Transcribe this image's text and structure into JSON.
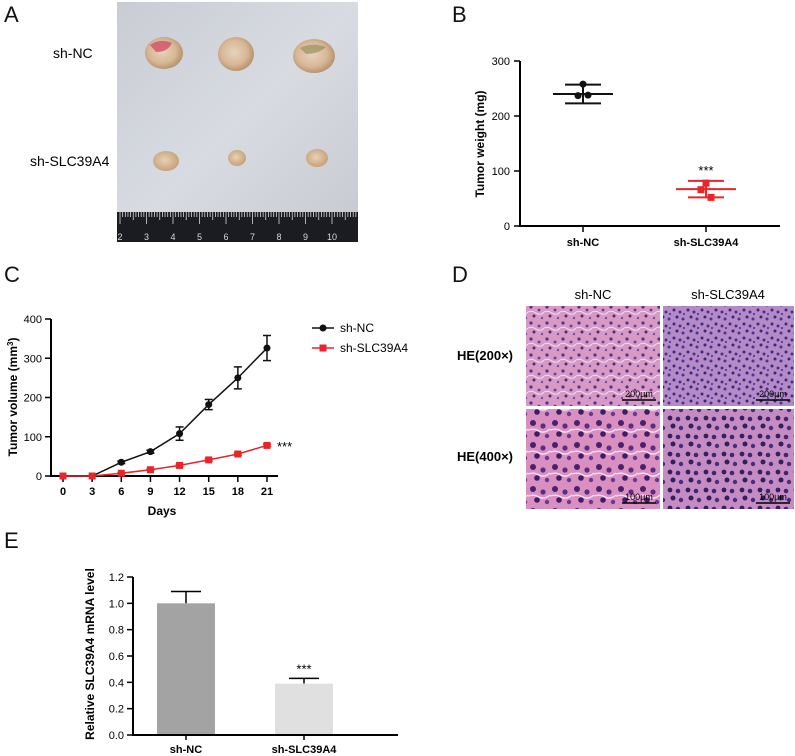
{
  "panels": {
    "A": {
      "letter": "A",
      "rows": [
        "sh-NC",
        "sh-SLC39A4"
      ],
      "ruler_numbers": [
        "2",
        "3",
        "4",
        "5",
        "6",
        "7",
        "8",
        "9",
        "10"
      ]
    },
    "B": {
      "letter": "B"
    },
    "C": {
      "letter": "C"
    },
    "D": {
      "letter": "D",
      "columns": [
        "sh-NC",
        "sh-SLC39A4"
      ],
      "rows": [
        "HE(200×)",
        "HE(400×)"
      ],
      "scale_bars": [
        "200μm",
        "200μm",
        "100μm",
        "100μm"
      ]
    },
    "E": {
      "letter": "E"
    }
  },
  "colors": {
    "red": "#e8262a",
    "black": "#111111",
    "bar_dark": "#a3a3a3",
    "bar_light": "#e0e0e0"
  },
  "chart_data": [
    {
      "id": "B",
      "type": "scatter",
      "xlabel": "",
      "ylabel": "Tumor weight (mg)",
      "ylim": [
        0,
        300
      ],
      "yticks": [
        "0",
        "100",
        "200",
        "300"
      ],
      "categories": [
        "sh-NC",
        "sh-SLC39A4"
      ],
      "series": [
        {
          "category": "sh-NC",
          "points": [
            258,
            237,
            238
          ],
          "mean": 240,
          "sd": 17,
          "color": "#111111",
          "marker": "circle"
        },
        {
          "category": "sh-SLC39A4",
          "points": [
            78,
            66,
            52
          ],
          "mean": 67,
          "sd": 15,
          "color": "#e8262a",
          "marker": "square",
          "annotation": "***"
        }
      ]
    },
    {
      "id": "C",
      "type": "line",
      "xlabel": "Days",
      "ylabel_prefix": "Tumor volume (mm",
      "ylabel_sup": "3",
      "ylabel_suffix": ")",
      "ylim": [
        0,
        400
      ],
      "yticks": [
        "0",
        "100",
        "200",
        "300",
        "400"
      ],
      "x": [
        0,
        3,
        6,
        9,
        12,
        15,
        18,
        21
      ],
      "xticks": [
        "0",
        "3",
        "6",
        "9",
        "12",
        "15",
        "18",
        "21"
      ],
      "legend_position": "top-right",
      "series": [
        {
          "name": "sh-NC",
          "color": "#111111",
          "marker": "circle",
          "values": [
            0,
            0,
            35,
            62,
            108,
            182,
            250,
            326
          ],
          "errors": [
            0,
            0,
            3,
            4,
            17,
            13,
            28,
            32
          ]
        },
        {
          "name": "sh-SLC39A4",
          "color": "#e8262a",
          "marker": "square",
          "values": [
            0,
            0,
            7,
            16,
            27,
            41,
            56,
            78
          ],
          "errors": [
            0,
            0,
            1,
            2,
            3,
            3,
            3,
            3
          ]
        }
      ],
      "annotation": "***"
    },
    {
      "id": "E",
      "type": "bar",
      "ylabel": "Relative SLC39A4 mRNA level",
      "ylim": [
        0,
        1.2
      ],
      "yticks": [
        "0.0",
        "0.2",
        "0.4",
        "0.6",
        "0.8",
        "1.0",
        "1.2"
      ],
      "categories": [
        "sh-NC",
        "sh-SLC39A4"
      ],
      "values": [
        1.0,
        0.39
      ],
      "errors": [
        0.09,
        0.04
      ],
      "colors": [
        "#a3a3a3",
        "#e0e0e0"
      ],
      "annotation": "***"
    }
  ]
}
